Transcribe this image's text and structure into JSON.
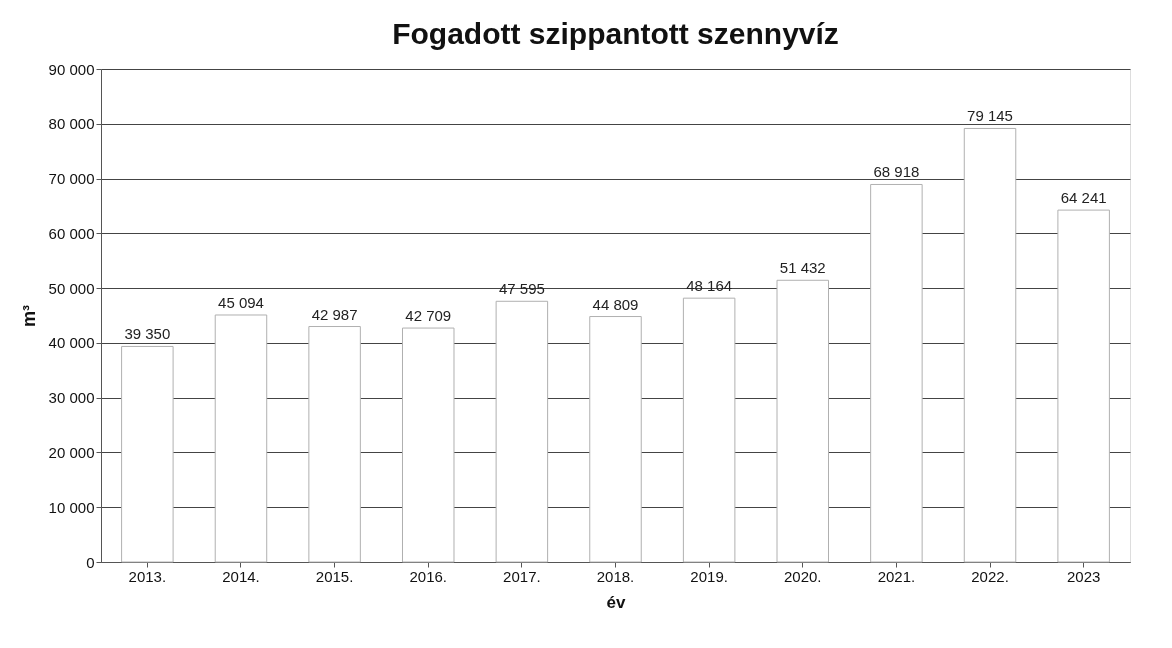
{
  "chart_data": {
    "type": "bar",
    "title": "Fogadott  szippantott szennyvíz",
    "xlabel": "év",
    "ylabel": "m³",
    "categories": [
      "2013.",
      "2014.",
      "2015.",
      "2016.",
      "2017.",
      "2018.",
      "2019.",
      "2020.",
      "2021.",
      "2022.",
      "2023"
    ],
    "values": [
      39350,
      45094,
      42987,
      42709,
      47595,
      44809,
      48164,
      51432,
      68918,
      79145,
      64241
    ],
    "value_labels": [
      "39 350",
      "45 094",
      "42 987",
      "42 709",
      "47 595",
      "44 809",
      "48 164",
      "51 432",
      "68 918",
      "79 145",
      "64 241"
    ],
    "color": "#ffffff",
    "ylim": [
      0,
      90000
    ],
    "yticks": [
      0,
      {
        "value": 10000,
        "label": "10 000"
      },
      {
        "value": 20000,
        "label": "20 000"
      },
      {
        "value": 30000,
        "label": "30 000"
      },
      {
        "value": 40000,
        "label": "40 000"
      },
      {
        "value": 50000,
        "label": "50 000"
      },
      {
        "value": 60000,
        "label": "60 000"
      },
      {
        "value": 70000,
        "label": "70 000"
      },
      {
        "value": 80000,
        "label": "80 000"
      },
      {
        "value": 90000,
        "label": "90 000"
      }
    ],
    "grid": "y"
  }
}
